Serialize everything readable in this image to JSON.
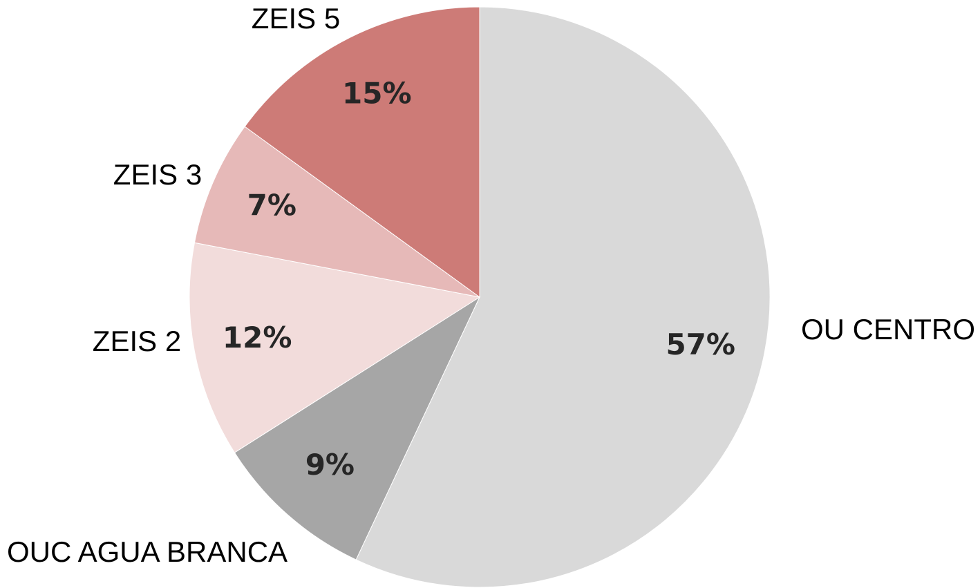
{
  "chart_data": {
    "type": "pie",
    "categories": [
      "OU CENTRO",
      "OUC AGUA BRANCA",
      "ZEIS 2",
      "ZEIS 3",
      "ZEIS 5"
    ],
    "values": [
      57,
      9,
      12,
      7,
      15
    ],
    "value_labels": [
      "57%",
      "9%",
      "12%",
      "7%",
      "15%"
    ],
    "colors": [
      "#d9d9d9",
      "#a6a6a6",
      "#f2dcdb",
      "#e6b9b8",
      "#cd7b77"
    ]
  }
}
